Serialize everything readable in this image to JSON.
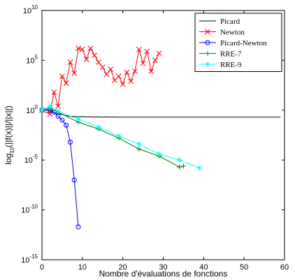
{
  "chart_data": {
    "type": "line",
    "title": "",
    "xlabel": "Nombre d'évaluations de fonctions",
    "ylabel": "log10(||f(x)||/||x||)",
    "xlim": [
      0,
      60
    ],
    "ylim": [
      -15,
      10
    ],
    "y_log_scale": true,
    "grid": false,
    "legend_position": "top-right",
    "x_tick_labels": [
      "0",
      "10",
      "20",
      "30",
      "40",
      "50",
      "60"
    ],
    "y_tick_labels": [
      {
        "value": 10,
        "base": "10",
        "exp": "10"
      },
      {
        "value": 5,
        "base": "10",
        "exp": "5"
      },
      {
        "value": 0,
        "base": "10",
        "exp": "0"
      },
      {
        "value": -5,
        "base": "10",
        "exp": "-5"
      },
      {
        "value": -10,
        "base": "10",
        "exp": "-10"
      },
      {
        "value": -15,
        "base": "10",
        "exp": "-15"
      }
    ],
    "series": [
      {
        "name": "Picard",
        "color": "#000000",
        "marker": "none",
        "x": [
          0,
          1,
          2,
          3,
          4,
          5,
          6,
          7,
          8,
          9,
          10,
          11,
          12,
          13,
          14,
          15,
          16,
          17,
          18,
          19,
          20,
          21,
          22,
          23,
          24,
          25,
          26,
          27,
          28,
          29,
          30,
          31,
          32,
          33,
          34,
          35,
          36,
          37,
          38,
          39,
          40,
          41,
          42,
          43,
          44,
          45,
          46,
          47,
          48,
          49,
          50,
          51,
          52,
          53,
          54,
          55,
          56,
          57,
          58,
          59
        ],
        "y": [
          0,
          0.05,
          -0.1,
          -0.25,
          -0.35,
          -0.45,
          -0.55,
          -0.6,
          -0.62,
          -0.66,
          -0.65,
          -0.68,
          -0.66,
          -0.69,
          -0.67,
          -0.69,
          -0.68,
          -0.7,
          -0.68,
          -0.7,
          -0.69,
          -0.7,
          -0.69,
          -0.7,
          -0.69,
          -0.7,
          -0.7,
          -0.7,
          -0.69,
          -0.7,
          -0.7,
          -0.7,
          -0.7,
          -0.7,
          -0.7,
          -0.7,
          -0.7,
          -0.7,
          -0.7,
          -0.7,
          -0.7,
          -0.7,
          -0.7,
          -0.7,
          -0.7,
          -0.7,
          -0.7,
          -0.7,
          -0.7,
          -0.7,
          -0.7,
          -0.7,
          -0.7,
          -0.7,
          -0.7,
          -0.7,
          -0.7,
          -0.7,
          -0.7,
          -0.7
        ]
      },
      {
        "name": "Newton",
        "color": "#ff0000",
        "marker": "x",
        "x": [
          0,
          2,
          3,
          4,
          5,
          6,
          7,
          8,
          9,
          10,
          11,
          12,
          13,
          14,
          15,
          16,
          17,
          18,
          19,
          20,
          21,
          22,
          23,
          24,
          25,
          26,
          27,
          28,
          29
        ],
        "y": [
          0,
          -0.4,
          1.8,
          0.4,
          3.4,
          2.7,
          4.8,
          3.7,
          6.2,
          6.1,
          5.1,
          6.2,
          5.5,
          4.8,
          4.3,
          3.6,
          4.1,
          3.0,
          3.4,
          2.6,
          3.8,
          2.9,
          3.9,
          6.1,
          4.7,
          5.9,
          3.9,
          5.0,
          5.7
        ]
      },
      {
        "name": "Picard-Newton",
        "color": "#0000ff",
        "marker": "o",
        "x": [
          0,
          2,
          3,
          4,
          5,
          6,
          7,
          8,
          9
        ],
        "y": [
          0,
          0,
          -0.2,
          -0.6,
          -1.0,
          -1.5,
          -3.2,
          -7.0,
          -11.7
        ]
      },
      {
        "name": "RRE-7",
        "color": "#008000",
        "marker": "+",
        "x": [
          0,
          2,
          4,
          9,
          14,
          19,
          24,
          29,
          34,
          35
        ],
        "y": [
          0,
          0.2,
          -0.2,
          -1.2,
          -1.9,
          -2.8,
          -3.9,
          -4.6,
          -5.7,
          -5.6
        ]
      },
      {
        "name": "RRE-9",
        "color": "#00ffff",
        "marker": "*",
        "x": [
          0,
          2,
          4,
          9,
          14,
          19,
          24,
          29,
          34,
          39
        ],
        "y": [
          0,
          0.4,
          -0.1,
          -0.9,
          -1.7,
          -2.6,
          -3.4,
          -4.4,
          -5.0,
          -5.8
        ]
      }
    ]
  }
}
